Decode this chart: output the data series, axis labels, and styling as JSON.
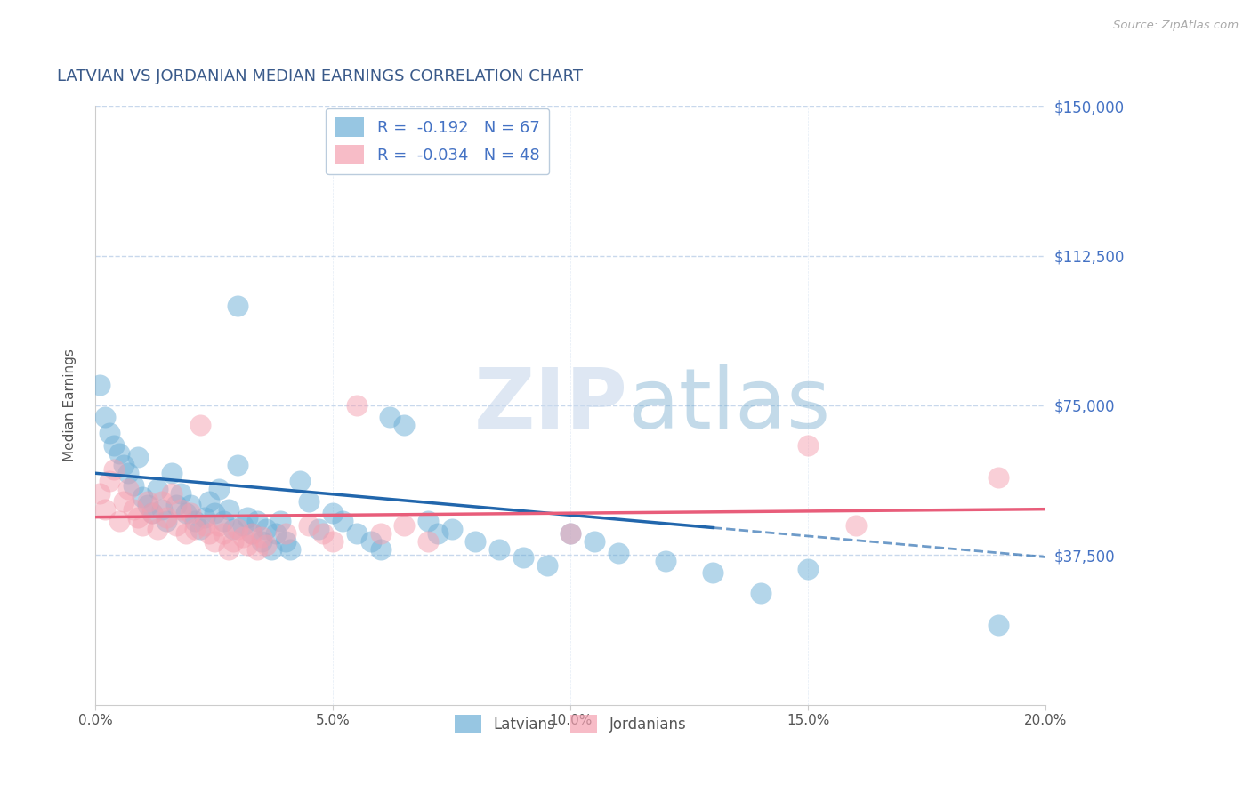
{
  "title": "LATVIAN VS JORDANIAN MEDIAN EARNINGS CORRELATION CHART",
  "source": "Source: ZipAtlas.com",
  "xlabel": "",
  "ylabel": "Median Earnings",
  "xlim": [
    0.0,
    0.2
  ],
  "ylim": [
    0,
    150000
  ],
  "yticks": [
    0,
    37500,
    75000,
    112500,
    150000
  ],
  "ytick_labels": [
    "",
    "$37,500",
    "$75,000",
    "$112,500",
    "$150,000"
  ],
  "xtick_labels": [
    "0.0%",
    "5.0%",
    "10.0%",
    "15.0%",
    "20.0%"
  ],
  "xticks": [
    0.0,
    0.05,
    0.1,
    0.15,
    0.2
  ],
  "latvian_color": "#6baed6",
  "jordanian_color": "#f4a0b0",
  "latvian_line_color": "#2166ac",
  "jordanian_line_color": "#e85d7a",
  "legend_latvian_label": "R =  -0.192   N = 67",
  "legend_jordanian_label": "R =  -0.034   N = 48",
  "watermark_zip": "ZIP",
  "watermark_atlas": "atlas",
  "title_color": "#3a5a8a",
  "axis_label_color": "#555555",
  "ytick_color": "#4472c4",
  "grid_color": "#c8d8ec",
  "lv_line_y0": 58000,
  "lv_line_y1": 37000,
  "lv_line_x_solid_end": 0.13,
  "jo_line_y0": 47000,
  "jo_line_y1": 49000,
  "latvian_points": [
    [
      0.001,
      80000
    ],
    [
      0.002,
      72000
    ],
    [
      0.003,
      68000
    ],
    [
      0.004,
      65000
    ],
    [
      0.005,
      63000
    ],
    [
      0.006,
      60000
    ],
    [
      0.007,
      58000
    ],
    [
      0.008,
      55000
    ],
    [
      0.009,
      62000
    ],
    [
      0.01,
      52000
    ],
    [
      0.011,
      50000
    ],
    [
      0.012,
      48000
    ],
    [
      0.013,
      54000
    ],
    [
      0.014,
      49000
    ],
    [
      0.015,
      46000
    ],
    [
      0.016,
      58000
    ],
    [
      0.017,
      50000
    ],
    [
      0.018,
      53000
    ],
    [
      0.019,
      48000
    ],
    [
      0.02,
      50000
    ],
    [
      0.021,
      46000
    ],
    [
      0.022,
      44000
    ],
    [
      0.023,
      47000
    ],
    [
      0.024,
      51000
    ],
    [
      0.025,
      48000
    ],
    [
      0.026,
      54000
    ],
    [
      0.027,
      46000
    ],
    [
      0.028,
      49000
    ],
    [
      0.029,
      44000
    ],
    [
      0.03,
      60000
    ],
    [
      0.031,
      45000
    ],
    [
      0.032,
      47000
    ],
    [
      0.033,
      43000
    ],
    [
      0.034,
      46000
    ],
    [
      0.035,
      41000
    ],
    [
      0.036,
      44000
    ],
    [
      0.037,
      39000
    ],
    [
      0.038,
      43000
    ],
    [
      0.039,
      46000
    ],
    [
      0.04,
      41000
    ],
    [
      0.041,
      39000
    ],
    [
      0.043,
      56000
    ],
    [
      0.045,
      51000
    ],
    [
      0.047,
      44000
    ],
    [
      0.03,
      100000
    ],
    [
      0.05,
      48000
    ],
    [
      0.052,
      46000
    ],
    [
      0.055,
      43000
    ],
    [
      0.058,
      41000
    ],
    [
      0.06,
      39000
    ],
    [
      0.062,
      72000
    ],
    [
      0.065,
      70000
    ],
    [
      0.07,
      46000
    ],
    [
      0.072,
      43000
    ],
    [
      0.075,
      44000
    ],
    [
      0.08,
      41000
    ],
    [
      0.085,
      39000
    ],
    [
      0.09,
      37000
    ],
    [
      0.095,
      35000
    ],
    [
      0.1,
      43000
    ],
    [
      0.105,
      41000
    ],
    [
      0.11,
      38000
    ],
    [
      0.12,
      36000
    ],
    [
      0.13,
      33000
    ],
    [
      0.14,
      28000
    ],
    [
      0.15,
      34000
    ],
    [
      0.19,
      20000
    ]
  ],
  "jordanian_points": [
    [
      0.001,
      53000
    ],
    [
      0.002,
      49000
    ],
    [
      0.003,
      56000
    ],
    [
      0.004,
      59000
    ],
    [
      0.005,
      46000
    ],
    [
      0.006,
      51000
    ],
    [
      0.007,
      54000
    ],
    [
      0.008,
      49000
    ],
    [
      0.009,
      47000
    ],
    [
      0.01,
      45000
    ],
    [
      0.011,
      51000
    ],
    [
      0.012,
      48000
    ],
    [
      0.013,
      44000
    ],
    [
      0.014,
      51000
    ],
    [
      0.015,
      47000
    ],
    [
      0.016,
      53000
    ],
    [
      0.017,
      45000
    ],
    [
      0.018,
      49000
    ],
    [
      0.019,
      43000
    ],
    [
      0.02,
      48000
    ],
    [
      0.021,
      44000
    ],
    [
      0.022,
      70000
    ],
    [
      0.023,
      45000
    ],
    [
      0.024,
      43000
    ],
    [
      0.025,
      41000
    ],
    [
      0.026,
      45000
    ],
    [
      0.027,
      43000
    ],
    [
      0.028,
      39000
    ],
    [
      0.029,
      41000
    ],
    [
      0.03,
      44000
    ],
    [
      0.031,
      42000
    ],
    [
      0.032,
      40000
    ],
    [
      0.033,
      43000
    ],
    [
      0.034,
      39000
    ],
    [
      0.035,
      42000
    ],
    [
      0.036,
      40000
    ],
    [
      0.04,
      43000
    ],
    [
      0.045,
      45000
    ],
    [
      0.048,
      43000
    ],
    [
      0.05,
      41000
    ],
    [
      0.055,
      75000
    ],
    [
      0.06,
      43000
    ],
    [
      0.065,
      45000
    ],
    [
      0.07,
      41000
    ],
    [
      0.1,
      43000
    ],
    [
      0.15,
      65000
    ],
    [
      0.16,
      45000
    ],
    [
      0.19,
      57000
    ]
  ]
}
